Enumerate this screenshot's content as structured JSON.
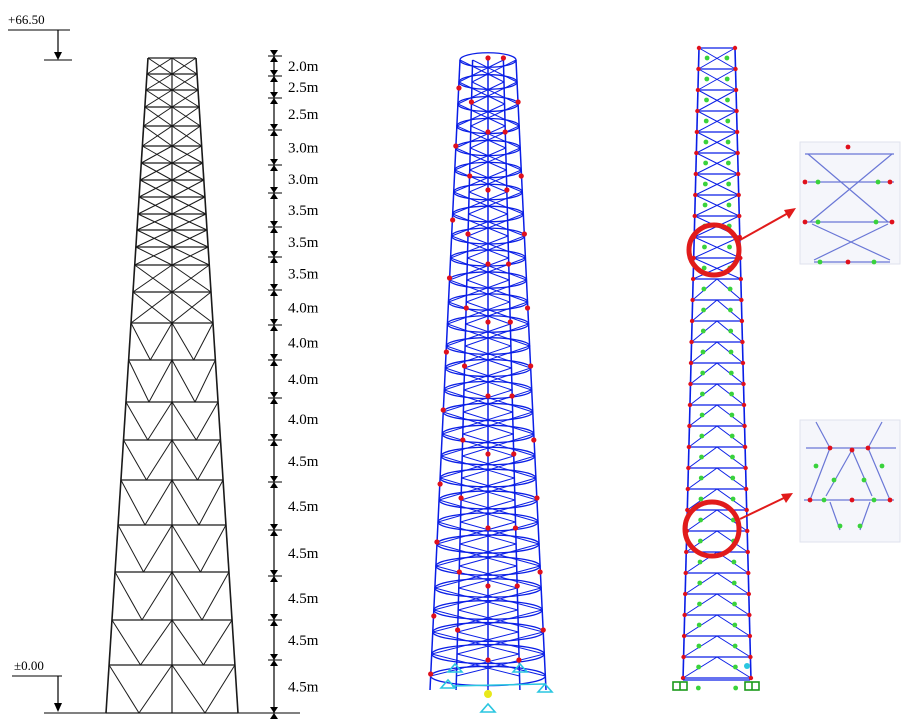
{
  "elevations": {
    "top_label": "+66.50",
    "bottom_label": "±0.00"
  },
  "segment_heights": [
    "2.0m",
    "2.5m",
    "2.5m",
    "3.0m",
    "3.0m",
    "3.5m",
    "3.5m",
    "3.5m",
    "4.0m",
    "4.0m",
    "4.0m",
    "4.0m",
    "4.5m",
    "4.5m",
    "4.5m",
    "4.5m",
    "4.5m",
    "4.5m"
  ],
  "colors": {
    "outline": "#1a1a1a",
    "frame_3d": "#0a1ee6",
    "joint_red": "#e0101c",
    "joint_green": "#39d23c",
    "support_cyan": "#29c6e0",
    "support_yellow": "#e8e81a",
    "callout": "#e11b1b",
    "inset_line": "#6a77d6"
  },
  "icons": [
    "down-arrow-icon",
    "dimension-tick-icon",
    "support-icon",
    "callout-arrow-icon"
  ]
}
